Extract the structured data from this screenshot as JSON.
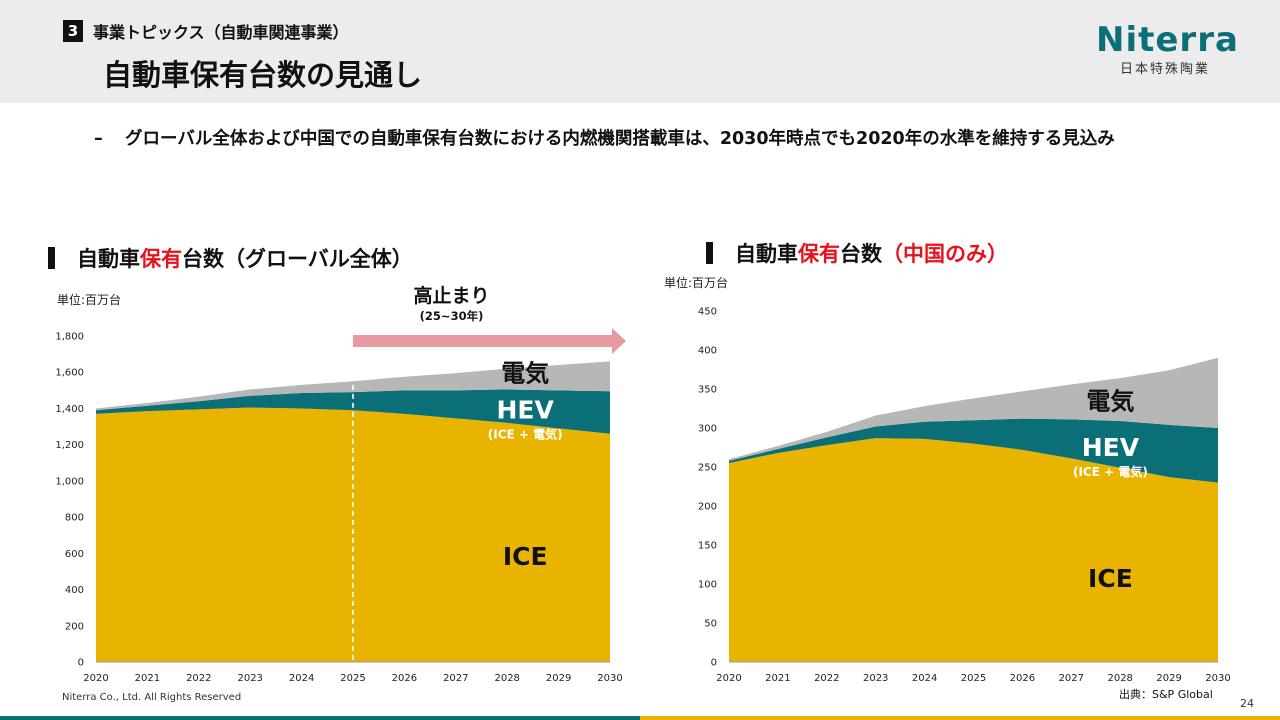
{
  "header": {
    "section_number": "3",
    "section_label": "事業トピックス（自動車関連事業）",
    "title": "自動車保有台数の見通し",
    "logo_word": "Niterra",
    "logo_sub": "日本特殊陶業"
  },
  "bullet": {
    "dash": "–",
    "text": "グローバル全体および中国での自動車保有台数における内燃機関搭載車は、2030年時点でも2020年の水準を維持する見込み"
  },
  "colors": {
    "ice": "#e8b400",
    "hev": "#0b6f77",
    "ev": "#b7b7b7",
    "accent_red": "#e8101b",
    "arrow": "#e89aa2"
  },
  "chart_data": [
    {
      "type": "area",
      "stacked": true,
      "title_prefix": "自動車",
      "title_highlight": "保有",
      "title_mid": "台数",
      "title_suffix": "（グローバル全体）",
      "unit": "単位:百万台",
      "x": [
        "2020",
        "2021",
        "2022",
        "2023",
        "2024",
        "2025",
        "2026",
        "2027",
        "2028",
        "2029",
        "2030"
      ],
      "series": [
        {
          "name": "ICE",
          "values": [
            1370,
            1385,
            1395,
            1405,
            1400,
            1390,
            1370,
            1345,
            1320,
            1290,
            1260
          ]
        },
        {
          "name": "HEV",
          "sublabel": "(ICE + 電気)",
          "values": [
            20,
            30,
            45,
            65,
            85,
            100,
            130,
            155,
            185,
            210,
            235
          ]
        },
        {
          "name": "電気",
          "values": [
            10,
            15,
            25,
            35,
            45,
            60,
            75,
            95,
            115,
            140,
            165
          ]
        }
      ],
      "ylim": [
        0,
        1800
      ],
      "yticks": [
        "0",
        "200",
        "400",
        "600",
        "800",
        "1,000",
        "1,200",
        "1,400",
        "1,600",
        "1,800"
      ],
      "annotation": {
        "label": "高止まり",
        "sublabel": "(25~30年)",
        "from": "2025",
        "to": "2030"
      }
    },
    {
      "type": "area",
      "stacked": true,
      "title_prefix": "自動車",
      "title_highlight": "保有",
      "title_mid": "台数",
      "title_suffix": "（中国のみ）",
      "unit": "単位:百万台",
      "x": [
        "2020",
        "2021",
        "2022",
        "2023",
        "2024",
        "2025",
        "2026",
        "2027",
        "2028",
        "2029",
        "2030"
      ],
      "series": [
        {
          "name": "ICE",
          "values": [
            255,
            268,
            278,
            287,
            286,
            280,
            272,
            261,
            249,
            237,
            230
          ]
        },
        {
          "name": "HEV",
          "sublabel": "(ICE + 電気)",
          "values": [
            3,
            5,
            10,
            15,
            22,
            30,
            40,
            50,
            60,
            67,
            70
          ]
        },
        {
          "name": "電気",
          "values": [
            2,
            4,
            7,
            14,
            20,
            28,
            35,
            45,
            55,
            70,
            90
          ]
        }
      ],
      "ylim": [
        0,
        450
      ],
      "yticks": [
        "0",
        "50",
        "100",
        "150",
        "200",
        "250",
        "300",
        "350",
        "400",
        "450"
      ]
    }
  ],
  "footer": {
    "copyright": "Niterra Co., Ltd. All Rights Reserved",
    "source": "出典：S&P Global",
    "page_number": "24"
  }
}
